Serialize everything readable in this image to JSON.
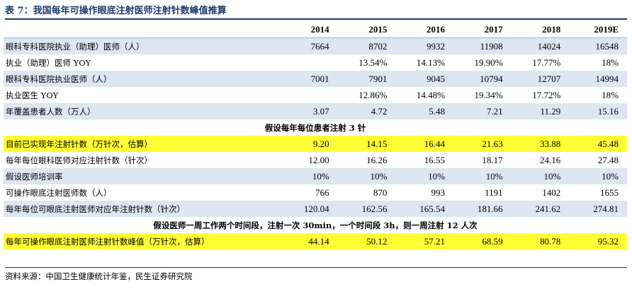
{
  "title": "表 7：我国每年可操作眼底注射医师注射针数峰值推算",
  "columns": [
    "2014",
    "2015",
    "2016",
    "2017",
    "2018",
    "2019E"
  ],
  "rows": [
    {
      "label": "眼科专科医院执业（助理）医师（人）",
      "values": [
        "7664",
        "8702",
        "9932",
        "11908",
        "14024",
        "16548"
      ],
      "style": "shade"
    },
    {
      "label": "执业（助理）医师 YOY",
      "values": [
        "",
        "13.54%",
        "14.13%",
        "19.90%",
        "17.77%",
        "18%"
      ],
      "style": "white"
    },
    {
      "label": "眼科专科医院执业医师（人）",
      "values": [
        "7001",
        "7901",
        "9045",
        "10794",
        "12707",
        "14994"
      ],
      "style": "shade"
    },
    {
      "label": "执业医生 YOY",
      "values": [
        "",
        "12.86%",
        "14.48%",
        "19.34%",
        "17.72%",
        "18%"
      ],
      "style": "white"
    },
    {
      "label": "年覆盖患者人数（万人）",
      "values": [
        "3.07",
        "4.72",
        "5.48",
        "7.21",
        "11.29",
        "15.16"
      ],
      "style": "shade"
    }
  ],
  "subhead1": "假设每年每位患者注射 3 针",
  "rows2": [
    {
      "label": "目前已实现年注射针数（万针次，估算）",
      "values": [
        "9.20",
        "14.15",
        "16.44",
        "21.63",
        "33.88",
        "45.48"
      ],
      "style": "yellow"
    },
    {
      "label": "每年每位眼科医师对应注射针数（针次）",
      "values": [
        "12.00",
        "16.26",
        "16.55",
        "18.17",
        "24.16",
        "27.48"
      ],
      "style": "white"
    },
    {
      "label": "假设医师培训率",
      "values": [
        "10%",
        "10%",
        "10%",
        "10%",
        "10%",
        "10%"
      ],
      "style": "shade"
    },
    {
      "label": "可操作眼底注射医师数（人）",
      "values": [
        "766",
        "870",
        "993",
        "1191",
        "1402",
        "1655"
      ],
      "style": "white"
    },
    {
      "label": "每年每位可眼底注射医师对应年注射针数（针次）",
      "values": [
        "120.04",
        "162.56",
        "165.54",
        "181.66",
        "241.62",
        "274.81"
      ],
      "style": "shade"
    }
  ],
  "subhead2": "假设医师一周工作两个时间段，注射一次 30min，一个时间段 3h，则一周注射 12 人次",
  "rows3": [
    {
      "label": "每年可操作眼底注射医师注射针数峰值（万针次，估算）",
      "values": [
        "44.14",
        "50.12",
        "57.21",
        "68.59",
        "80.78",
        "95.32"
      ],
      "style": "yellow"
    }
  ],
  "source": "资料来源：中国卫生健康统计年鉴，民生证券研究院"
}
